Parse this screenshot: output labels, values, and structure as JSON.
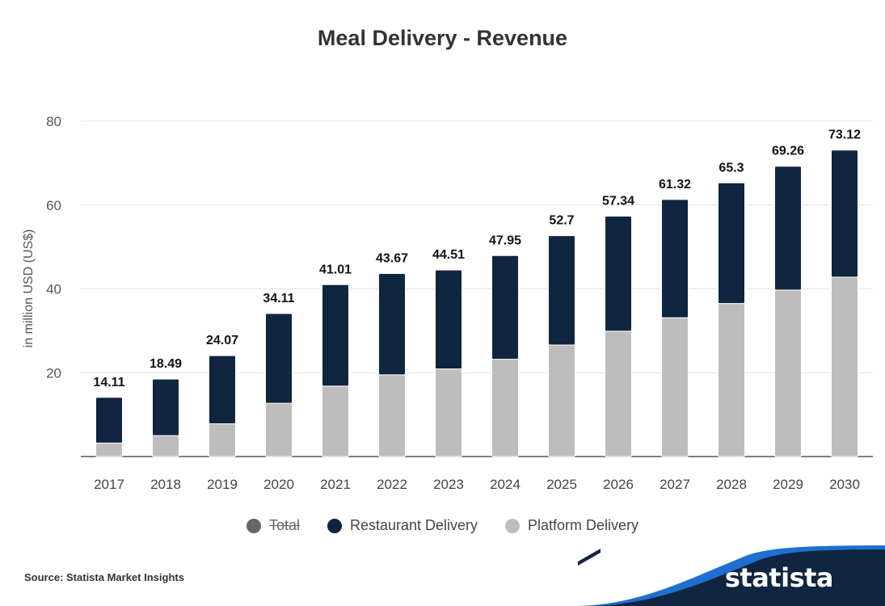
{
  "chart_data": {
    "type": "bar",
    "stacked": true,
    "title": "Meal Delivery - Revenue",
    "ylabel": "in million USD (US$)",
    "xlabel": "",
    "ylim": [
      0,
      80
    ],
    "yticks": [
      20,
      40,
      60,
      80
    ],
    "grid": true,
    "legend_position": "bottom",
    "categories": [
      "2017",
      "2018",
      "2019",
      "2020",
      "2021",
      "2022",
      "2023",
      "2024",
      "2025",
      "2026",
      "2027",
      "2028",
      "2029",
      "2030"
    ],
    "totals": [
      14.11,
      18.49,
      24.07,
      34.11,
      41.01,
      43.67,
      44.51,
      47.95,
      52.7,
      57.34,
      61.32,
      65.3,
      69.26,
      73.12
    ],
    "series": [
      {
        "name": "Platform Delivery",
        "color": "#bdbdbd",
        "values": [
          3.2,
          5.0,
          7.8,
          12.7,
          16.8,
          19.5,
          20.9,
          23.2,
          26.6,
          29.9,
          33.1,
          36.5,
          39.7,
          42.8
        ]
      },
      {
        "name": "Restaurant Delivery",
        "color": "#0f2540",
        "values": [
          10.91,
          13.49,
          16.27,
          21.41,
          24.21,
          24.17,
          23.61,
          24.75,
          26.1,
          27.44,
          28.22,
          28.8,
          29.56,
          30.32
        ]
      }
    ]
  },
  "legend": [
    {
      "label": "Total",
      "color": "#666666",
      "hidden": true
    },
    {
      "label": "Restaurant Delivery",
      "color": "#0f2540",
      "hidden": false
    },
    {
      "label": "Platform Delivery",
      "color": "#bdbdbd",
      "hidden": false
    }
  ],
  "source": "Source: Statista Market Insights",
  "brand": {
    "name": "statista",
    "color": "#0f2540",
    "accent": "#1f6fd1"
  }
}
